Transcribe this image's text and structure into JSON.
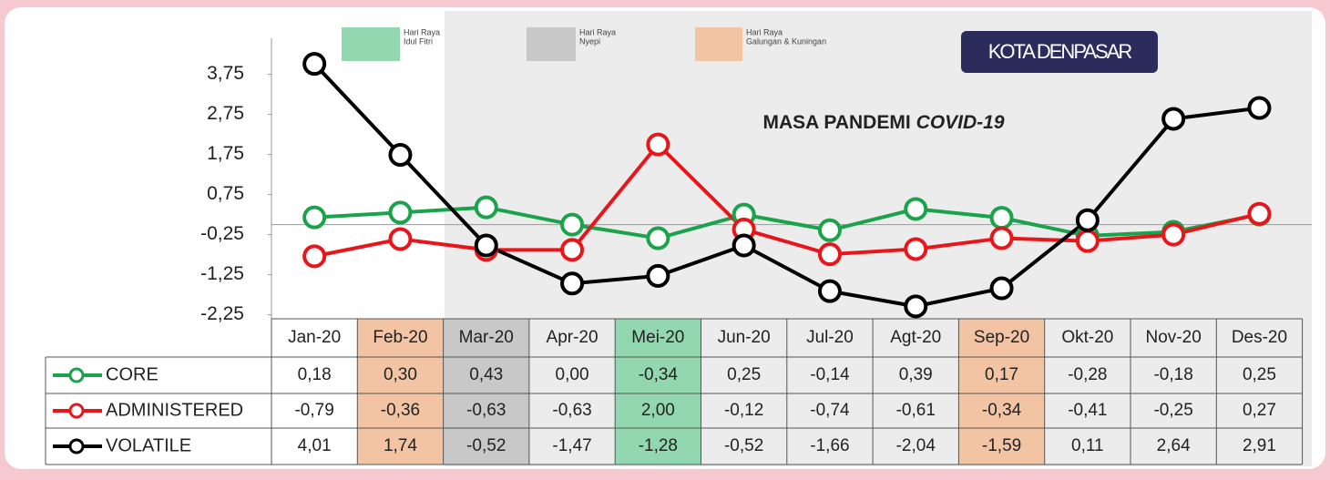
{
  "chart_data": {
    "type": "line",
    "badge": "KOTA DENPASAR",
    "annotation": "MASA PANDEMI",
    "annotation_emphasis": "COVID-19",
    "legend_boxes": [
      {
        "lines": [
          "Hari Raya",
          "Idul Fitri"
        ],
        "color": "#93d7b0"
      },
      {
        "lines": [
          "Hari Raya",
          "Nyepi"
        ],
        "color": "#c8c8c8"
      },
      {
        "lines": [
          "Hari Raya",
          "Galungan & Kuningan"
        ],
        "color": "#f2c4a4"
      }
    ],
    "categories": [
      "Jan-20",
      "Feb-20",
      "Mar-20",
      "Apr-20",
      "Mei-20",
      "Jun-20",
      "Jul-20",
      "Agt-20",
      "Sep-20",
      "Okt-20",
      "Nov-20",
      "Des-20"
    ],
    "category_colors": [
      null,
      "#f2c4a4",
      "#c8c8c8",
      null,
      "#93d7b0",
      null,
      null,
      null,
      "#f2c4a4",
      null,
      null,
      null
    ],
    "series": [
      {
        "name": "CORE",
        "color": "#1aa34a",
        "values": [
          0.18,
          0.3,
          0.43,
          0.0,
          -0.34,
          0.25,
          -0.14,
          0.39,
          0.17,
          -0.28,
          -0.18,
          0.25
        ],
        "value_labels": [
          "0,18",
          "0,30",
          "0,43",
          "0,00",
          "-0,34",
          "0,25",
          "-0,14",
          "0,39",
          "0,17",
          "-0,28",
          "-0,18",
          "0,25"
        ]
      },
      {
        "name": "ADMINISTERED",
        "color": "#e8161b",
        "values": [
          -0.79,
          -0.36,
          -0.63,
          -0.63,
          2.0,
          -0.12,
          -0.74,
          -0.61,
          -0.34,
          -0.41,
          -0.25,
          0.27
        ],
        "value_labels": [
          "-0,79",
          "-0,36",
          "-0,63",
          "-0,63",
          "2,00",
          "-0,12",
          "-0,74",
          "-0,61",
          "-0,34",
          "-0,41",
          "-0,25",
          "0,27"
        ]
      },
      {
        "name": "VOLATILE",
        "color": "#000000",
        "values": [
          4.01,
          1.74,
          -0.52,
          -1.47,
          -1.28,
          -0.52,
          -1.66,
          -2.04,
          -1.59,
          0.11,
          2.64,
          2.91
        ],
        "value_labels": [
          "4,01",
          "1,74",
          "-0,52",
          "-1,47",
          "-1,28",
          "-0,52",
          "-1,66",
          "-2,04",
          "-1,59",
          "0,11",
          "2,64",
          "2,91"
        ]
      }
    ],
    "ylim": [
      -2.35,
      4.65
    ],
    "yticks": [
      {
        "value": 3.75,
        "label": "3,75"
      },
      {
        "value": 2.75,
        "label": "2,75"
      },
      {
        "value": 1.75,
        "label": "1,75"
      },
      {
        "value": 0.75,
        "label": "0,75"
      },
      {
        "value": -0.25,
        "label": "-0,25"
      },
      {
        "value": -1.25,
        "label": "-1,25"
      },
      {
        "value": -2.25,
        "label": "-2,25"
      }
    ]
  }
}
